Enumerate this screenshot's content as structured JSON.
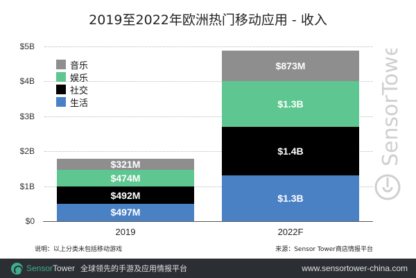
{
  "title": "2019至2022年欧洲热门移动应用 - 收入",
  "chart_data": {
    "type": "bar",
    "stacked": true,
    "title": "2019至2022年欧洲热门移动应用 - 收入",
    "xlabel": "",
    "ylabel": "",
    "ylim": [
      0,
      5
    ],
    "yunit": "USD Billions",
    "yticks": [
      "$0",
      "$1B",
      "$2B",
      "$3B",
      "$4B",
      "$5B"
    ],
    "categories": [
      "2019",
      "2022F"
    ],
    "grid": true,
    "legend_position": "upper-left",
    "series": [
      {
        "name": "生活",
        "color": "#4a80c4",
        "values": [
          0.497,
          1.3
        ],
        "labels": [
          "$497M",
          "$1.3B"
        ]
      },
      {
        "name": "社交",
        "color": "#000000",
        "values": [
          0.492,
          1.4
        ],
        "labels": [
          "$492M",
          "$1.4B"
        ]
      },
      {
        "name": "娱乐",
        "color": "#5ec690",
        "values": [
          0.474,
          1.3
        ],
        "labels": [
          "$474M",
          "$1.3B"
        ]
      },
      {
        "name": "音乐",
        "color": "#8e8e8e",
        "values": [
          0.321,
          0.873
        ],
        "labels": [
          "$321M",
          "$873M"
        ]
      }
    ]
  },
  "legend": [
    {
      "label": "音乐",
      "color": "#8e8e8e"
    },
    {
      "label": "娱乐",
      "color": "#5ec690"
    },
    {
      "label": "社交",
      "color": "#000000"
    },
    {
      "label": "生活",
      "color": "#4a80c4"
    }
  ],
  "watermark": "SensorTower",
  "notes": {
    "left": "说明：以上分类未包括移动游戏",
    "right": "来源：Sensor Tower商店情报平台"
  },
  "footer": {
    "brand_sensor": "Sensor",
    "brand_tower": "Tower",
    "slogan": "全球领先的手游及应用情报平台",
    "url": "www.sensortower-china.com"
  }
}
